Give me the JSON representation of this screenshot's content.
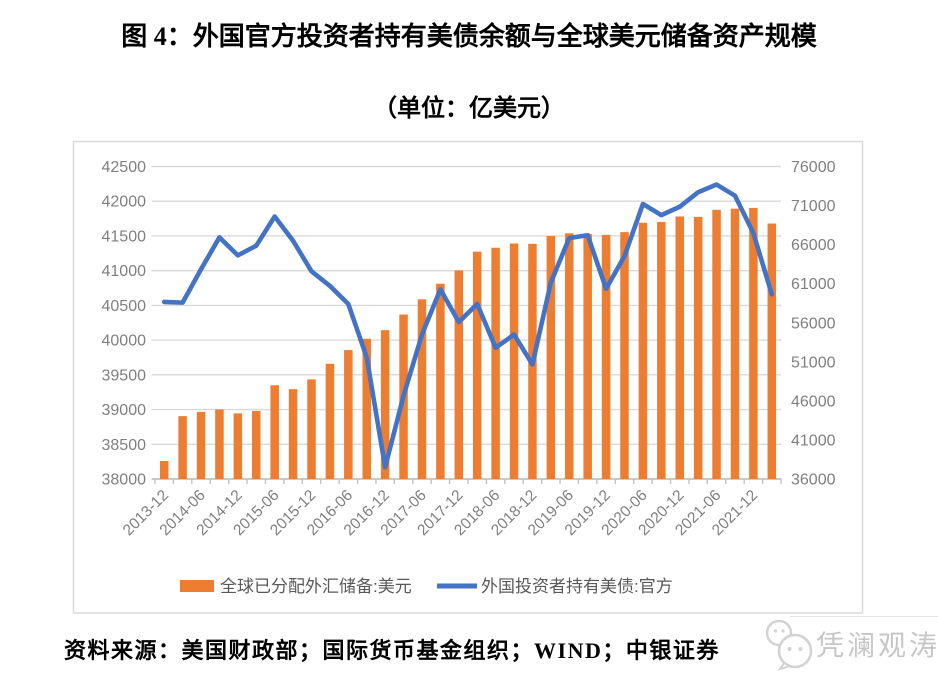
{
  "title": "图 4：外国官方投资者持有美债余额与全球美元储备资产规模",
  "subtitle": "（单位：亿美元）",
  "source_note": "资料来源：美国财政部；国际货币基金组织；WIND；中银证券",
  "watermark": {
    "text": "凭澜观涛",
    "icon": "chat-bubbles-logo-icon"
  },
  "colors": {
    "bar": "#ED7D31",
    "line": "#4472C4",
    "grid": "#D9D9D9",
    "frame": "#D9D9D9",
    "axis_line": "#BFBFBF",
    "axis_text": "#7F7F7F",
    "legend_text": "#595959",
    "watermark": "#C6C6C6"
  },
  "chart_data": {
    "type": "bar+line combo, dual axis",
    "grid": "horizontal",
    "legend_position": "bottom-inside",
    "categories": [
      "2013-12",
      "2014-03",
      "2014-06",
      "2014-09",
      "2014-12",
      "2015-03",
      "2015-06",
      "2015-09",
      "2015-12",
      "2016-03",
      "2016-06",
      "2016-09",
      "2016-12",
      "2017-03",
      "2017-06",
      "2017-09",
      "2017-12",
      "2018-03",
      "2018-06",
      "2018-09",
      "2018-12",
      "2019-03",
      "2019-06",
      "2019-09",
      "2019-12",
      "2020-03",
      "2020-06",
      "2020-09",
      "2020-12",
      "2021-03",
      "2021-06",
      "2021-09",
      "2021-12",
      "2022-03"
    ],
    "x_tick_labels": [
      "2013-12",
      "2014-06",
      "2014-12",
      "2015-06",
      "2015-12",
      "2016-06",
      "2016-12",
      "2017-06",
      "2017-12",
      "2018-06",
      "2018-12",
      "2019-06",
      "2019-12",
      "2020-06",
      "2020-12",
      "2021-06",
      "2021-12"
    ],
    "series": [
      {
        "name": "全球已分配外汇储备:美元",
        "type": "bar",
        "axis": "right",
        "color": "#ED7D31",
        "values": [
          38300,
          44050,
          44600,
          44900,
          44400,
          44700,
          48000,
          47500,
          48750,
          50750,
          52500,
          53950,
          55050,
          57050,
          59000,
          61000,
          62700,
          65100,
          65600,
          66150,
          66100,
          67100,
          67450,
          67350,
          67250,
          67600,
          68800,
          68900,
          69600,
          69550,
          70450,
          70600,
          70700,
          68700
        ]
      },
      {
        "name": "外国投资者持有美债:官方",
        "type": "line",
        "axis": "left",
        "color": "#4472C4",
        "values": [
          40550,
          40540,
          41020,
          41480,
          41220,
          41360,
          41780,
          41430,
          40990,
          40780,
          40520,
          39750,
          38170,
          39200,
          40080,
          40730,
          40260,
          40520,
          39890,
          40080,
          39650,
          40830,
          41470,
          41510,
          40740,
          41210,
          41960,
          41800,
          41920,
          42130,
          42240,
          42080,
          41540,
          40660
        ]
      }
    ],
    "left_axis": {
      "min": 38000,
      "max": 42500,
      "step": 500,
      "tick_labels": [
        "42500",
        "42000",
        "41500",
        "41000",
        "40500",
        "40000",
        "39500",
        "39000",
        "38500",
        "38000"
      ]
    },
    "right_axis": {
      "min": 36000,
      "max": 76000,
      "step": 5000,
      "tick_labels": [
        "76000",
        "71000",
        "66000",
        "61000",
        "56000",
        "51000",
        "46000",
        "41000",
        "36000"
      ]
    }
  }
}
